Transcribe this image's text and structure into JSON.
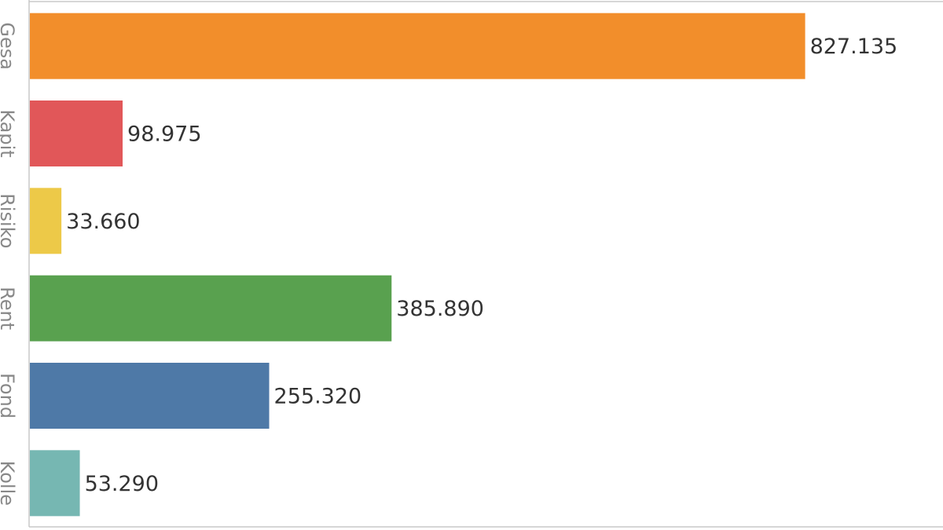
{
  "chart_data": {
    "type": "bar",
    "orientation": "horizontal",
    "categories": [
      "Gesa",
      "Kapit",
      "Risiko",
      "Rent",
      "Fond",
      "Kolle"
    ],
    "values": [
      827135,
      98975,
      33660,
      385890,
      255320,
      53290
    ],
    "value_labels": [
      "827.135",
      "98.975",
      "33.660",
      "385.890",
      "255.320",
      "53.290"
    ],
    "colors": [
      "#f28e2b",
      "#e15759",
      "#edc948",
      "#59a14f",
      "#4e79a7",
      "#76b7b2"
    ],
    "xlim": [
      0,
      970000
    ]
  }
}
